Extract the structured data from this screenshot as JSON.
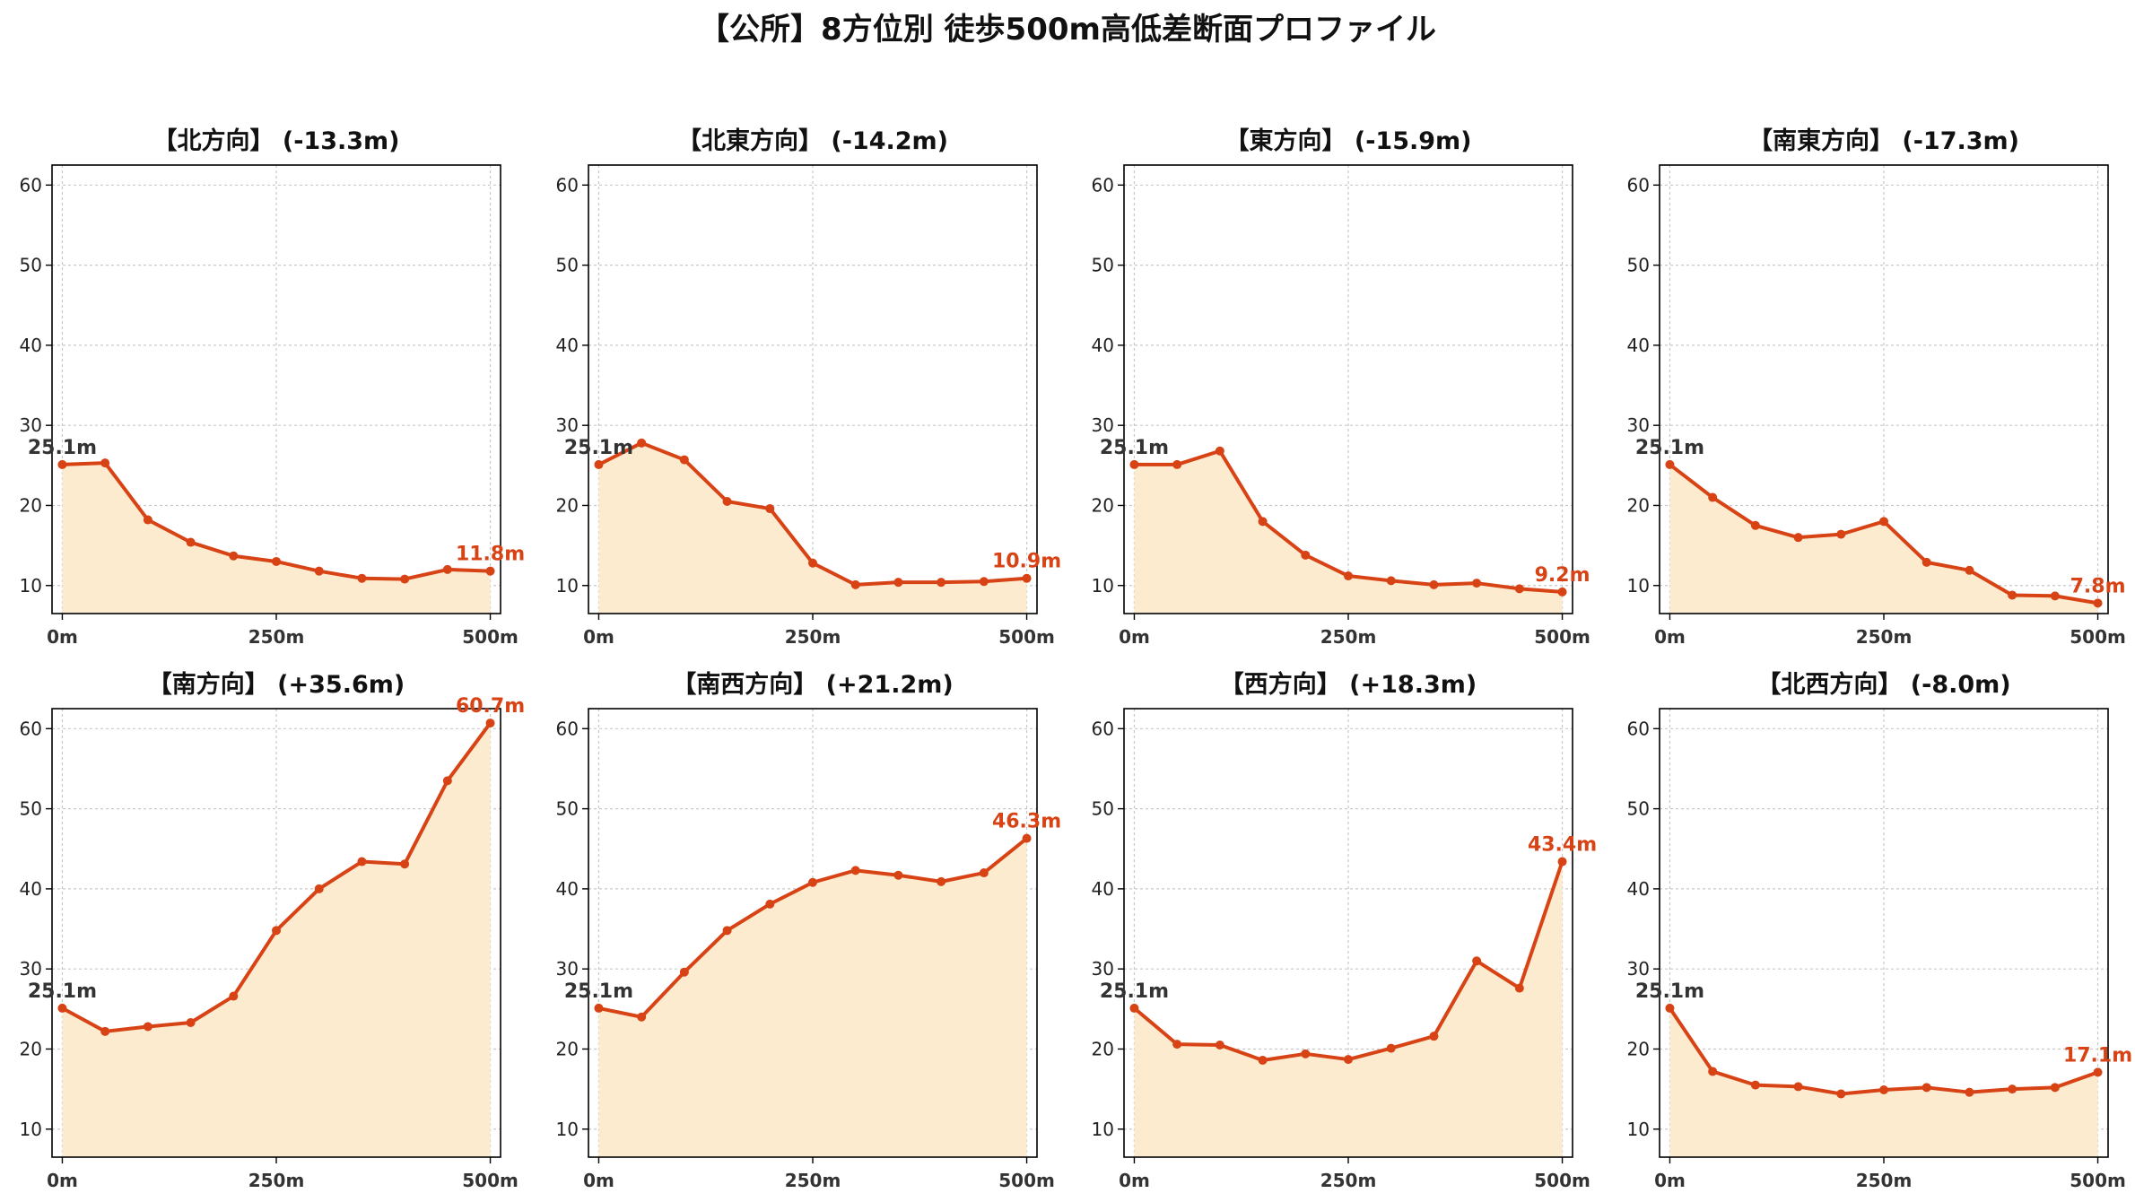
{
  "title": "【公所】8方位別 徒歩500m高低差断面プロファイル",
  "colors": {
    "line": "#d84315",
    "fill": "#fdebd0",
    "grid": "#c8c8c8",
    "start_label": "#333333",
    "end_label": "#d84315"
  },
  "chart_data": [
    {
      "type": "area",
      "title": "【北方向】 (-13.3m)",
      "x": [
        0,
        50,
        100,
        150,
        200,
        250,
        300,
        350,
        400,
        450,
        500
      ],
      "values": [
        25.1,
        25.3,
        18.2,
        15.4,
        13.7,
        13.0,
        11.8,
        10.9,
        10.8,
        12.0,
        11.8
      ],
      "start_label": "25.1m",
      "end_label": "11.8m",
      "xticks": [
        "0m",
        "250m",
        "500m"
      ],
      "yticks": [
        10,
        20,
        30,
        40,
        50,
        60
      ],
      "ylim": [
        6.5,
        62.5
      ],
      "xlim": [
        -12,
        512
      ],
      "grid": true
    },
    {
      "type": "area",
      "title": "【北東方向】 (-14.2m)",
      "x": [
        0,
        50,
        100,
        150,
        200,
        250,
        300,
        350,
        400,
        450,
        500
      ],
      "values": [
        25.1,
        27.8,
        25.7,
        20.5,
        19.6,
        12.8,
        10.1,
        10.4,
        10.4,
        10.5,
        10.9
      ],
      "start_label": "25.1m",
      "end_label": "10.9m",
      "xticks": [
        "0m",
        "250m",
        "500m"
      ],
      "yticks": [
        10,
        20,
        30,
        40,
        50,
        60
      ],
      "ylim": [
        6.5,
        62.5
      ],
      "xlim": [
        -12,
        512
      ],
      "grid": true
    },
    {
      "type": "area",
      "title": "【東方向】 (-15.9m)",
      "x": [
        0,
        50,
        100,
        150,
        200,
        250,
        300,
        350,
        400,
        450,
        500
      ],
      "values": [
        25.1,
        25.1,
        26.8,
        18.0,
        13.8,
        11.2,
        10.6,
        10.1,
        10.3,
        9.6,
        9.2
      ],
      "start_label": "25.1m",
      "end_label": "9.2m",
      "xticks": [
        "0m",
        "250m",
        "500m"
      ],
      "yticks": [
        10,
        20,
        30,
        40,
        50,
        60
      ],
      "ylim": [
        6.5,
        62.5
      ],
      "xlim": [
        -12,
        512
      ],
      "grid": true
    },
    {
      "type": "area",
      "title": "【南東方向】 (-17.3m)",
      "x": [
        0,
        50,
        100,
        150,
        200,
        250,
        300,
        350,
        400,
        450,
        500
      ],
      "values": [
        25.1,
        21.0,
        17.5,
        16.0,
        16.4,
        18.0,
        12.9,
        11.9,
        8.8,
        8.7,
        7.8
      ],
      "start_label": "25.1m",
      "end_label": "7.8m",
      "xticks": [
        "0m",
        "250m",
        "500m"
      ],
      "yticks": [
        10,
        20,
        30,
        40,
        50,
        60
      ],
      "ylim": [
        6.5,
        62.5
      ],
      "xlim": [
        -12,
        512
      ],
      "grid": true
    },
    {
      "type": "area",
      "title": "【南方向】 (+35.6m)",
      "x": [
        0,
        50,
        100,
        150,
        200,
        250,
        300,
        350,
        400,
        450,
        500
      ],
      "values": [
        25.1,
        22.2,
        22.8,
        23.3,
        26.6,
        34.8,
        40.0,
        43.4,
        43.1,
        53.5,
        60.7
      ],
      "start_label": "25.1m",
      "end_label": "60.7m",
      "xticks": [
        "0m",
        "250m",
        "500m"
      ],
      "yticks": [
        10,
        20,
        30,
        40,
        50,
        60
      ],
      "ylim": [
        6.5,
        62.5
      ],
      "xlim": [
        -12,
        512
      ],
      "grid": true
    },
    {
      "type": "area",
      "title": "【南西方向】 (+21.2m)",
      "x": [
        0,
        50,
        100,
        150,
        200,
        250,
        300,
        350,
        400,
        450,
        500
      ],
      "values": [
        25.1,
        24.0,
        29.6,
        34.8,
        38.1,
        40.8,
        42.3,
        41.7,
        40.9,
        42.0,
        46.3
      ],
      "start_label": "25.1m",
      "end_label": "46.3m",
      "xticks": [
        "0m",
        "250m",
        "500m"
      ],
      "yticks": [
        10,
        20,
        30,
        40,
        50,
        60
      ],
      "ylim": [
        6.5,
        62.5
      ],
      "xlim": [
        -12,
        512
      ],
      "grid": true
    },
    {
      "type": "area",
      "title": "【西方向】 (+18.3m)",
      "x": [
        0,
        50,
        100,
        150,
        200,
        250,
        300,
        350,
        400,
        450,
        500
      ],
      "values": [
        25.1,
        20.6,
        20.5,
        18.6,
        19.4,
        18.7,
        20.1,
        21.6,
        31.0,
        27.6,
        43.4
      ],
      "start_label": "25.1m",
      "end_label": "43.4m",
      "xticks": [
        "0m",
        "250m",
        "500m"
      ],
      "yticks": [
        10,
        20,
        30,
        40,
        50,
        60
      ],
      "ylim": [
        6.5,
        62.5
      ],
      "xlim": [
        -12,
        512
      ],
      "grid": true
    },
    {
      "type": "area",
      "title": "【北西方向】 (-8.0m)",
      "x": [
        0,
        50,
        100,
        150,
        200,
        250,
        300,
        350,
        400,
        450,
        500
      ],
      "values": [
        25.1,
        17.2,
        15.5,
        15.3,
        14.4,
        14.9,
        15.2,
        14.6,
        15.0,
        15.2,
        17.1
      ],
      "start_label": "25.1m",
      "end_label": "17.1m",
      "xticks": [
        "0m",
        "250m",
        "500m"
      ],
      "yticks": [
        10,
        20,
        30,
        40,
        50,
        60
      ],
      "ylim": [
        6.5,
        62.5
      ],
      "xlim": [
        -12,
        512
      ],
      "grid": true
    }
  ]
}
